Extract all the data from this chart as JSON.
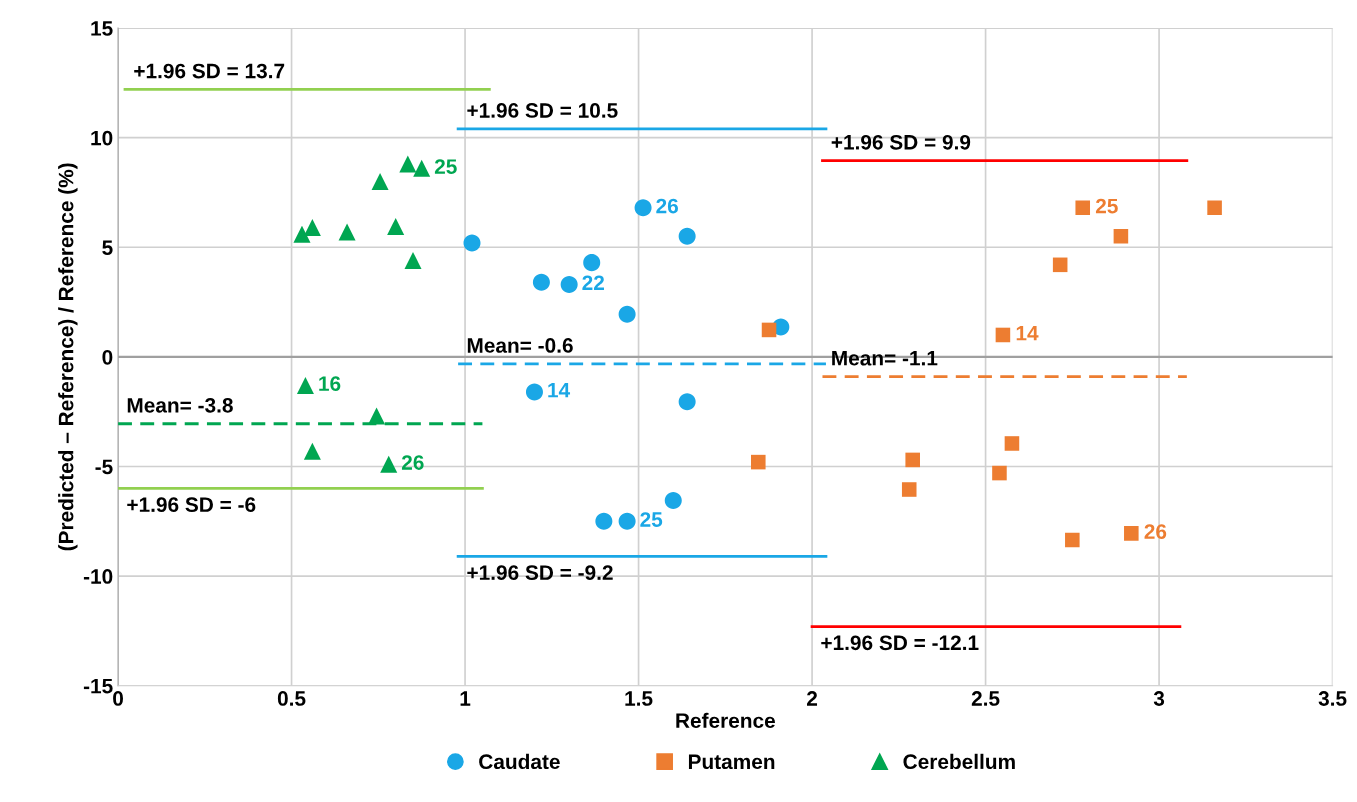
{
  "chart_data": {
    "type": "scatter",
    "xlabel": "Reference",
    "ylabel": "(Predicted – Reference) / Reference (%)",
    "xlim": [
      0,
      3.5
    ],
    "xticks": [
      0,
      0.5,
      1,
      1.5,
      2,
      2.5,
      3,
      3.5
    ],
    "ylim": [
      -15,
      15
    ],
    "yticks": [
      -15,
      -10,
      -5,
      0,
      5,
      10,
      15
    ],
    "grid": true,
    "legend": "bottom",
    "series": [
      {
        "name": "Caudate",
        "marker": "circle",
        "color": "#1aa7e6",
        "x": [
          1.02,
          1.22,
          1.3,
          1.365,
          1.467,
          1.513,
          1.64,
          1.2,
          1.64,
          1.4,
          1.467,
          1.6,
          1.91
        ],
        "values": [
          5.2,
          3.4,
          3.3,
          4.3,
          1.95,
          6.8,
          5.5,
          -1.6,
          -2.05,
          -7.5,
          -7.5,
          -6.55,
          1.36
        ]
      },
      {
        "name": "Putamen",
        "marker": "square",
        "color": "#ed7d31",
        "x": [
          1.876,
          1.845,
          2.29,
          2.28,
          2.576,
          2.54,
          2.55,
          2.715,
          2.78,
          2.89,
          3.16,
          2.75,
          2.92
        ],
        "values": [
          1.23,
          -4.8,
          -4.7,
          -6.05,
          -3.95,
          -5.3,
          1.0,
          4.2,
          6.8,
          5.5,
          6.8,
          -8.35,
          -8.05
        ]
      },
      {
        "name": "Cerebellum",
        "marker": "triangle",
        "color": "#00a651",
        "x": [
          0.53,
          0.56,
          0.66,
          0.8,
          0.755,
          0.835,
          0.875,
          0.85,
          0.54,
          0.745,
          0.56,
          0.78
        ],
        "values": [
          5.6,
          5.9,
          5.7,
          5.95,
          8.0,
          8.8,
          8.6,
          4.4,
          -1.3,
          -2.7,
          -4.3,
          -4.9
        ]
      },
      {
        "name": "+1.96 SD = 13.7",
        "type": "line",
        "line_style": "solid",
        "color": "#92d050",
        "x": [
          0.02,
          1.07
        ],
        "values": [
          12.2,
          12.2
        ]
      },
      {
        "name": "Mean= -3.8",
        "type": "line",
        "line_style": "dashed",
        "color": "#00a651",
        "x": [
          0.0,
          1.05
        ],
        "values": [
          -3.05,
          -3.05
        ]
      },
      {
        "name": "+1.96 SD = -6",
        "type": "line",
        "line_style": "solid",
        "color": "#92d050",
        "x": [
          0.0,
          1.05
        ],
        "values": [
          -6.0,
          -6.0
        ]
      },
      {
        "name": "+1.96 SD = 10.5",
        "type": "line",
        "line_style": "solid",
        "color": "#1aa7e6",
        "x": [
          0.98,
          2.04
        ],
        "values": [
          10.4,
          10.4
        ]
      },
      {
        "name": "Mean= -0.6",
        "type": "line",
        "line_style": "dashed",
        "color": "#1aa7e6",
        "x": [
          0.98,
          2.04
        ],
        "values": [
          -0.32,
          -0.32
        ]
      },
      {
        "name": "+1.96 SD = -9.2",
        "type": "line",
        "line_style": "solid",
        "color": "#1aa7e6",
        "x": [
          0.98,
          2.04
        ],
        "values": [
          -9.1,
          -9.1
        ]
      },
      {
        "name": "+1.96 SD = 9.9",
        "type": "line",
        "line_style": "solid",
        "color": "#ff0000",
        "x": [
          2.03,
          3.08
        ],
        "values": [
          8.95,
          8.95
        ]
      },
      {
        "name": "Mean= -1.1",
        "type": "line",
        "line_style": "dashed",
        "color": "#ed7d31",
        "x": [
          2.03,
          3.08
        ],
        "values": [
          -0.9,
          -0.9
        ]
      },
      {
        "name": "+1.96 SD = -12.1",
        "type": "line",
        "line_style": "solid",
        "color": "#ff0000",
        "x": [
          2.0,
          3.06
        ],
        "values": [
          -12.3,
          -12.3
        ]
      }
    ],
    "annotations": [
      {
        "text": "22",
        "x": 1.3,
        "y": 3.3
      },
      {
        "text": "26",
        "x": 1.513,
        "y": 6.8
      },
      {
        "text": "14",
        "x": 1.2,
        "y": -1.6
      },
      {
        "text": "25",
        "x": 1.467,
        "y": -7.5
      },
      {
        "text": "14",
        "x": 2.55,
        "y": 1.0
      },
      {
        "text": "25",
        "x": 2.78,
        "y": 6.8
      },
      {
        "text": "26",
        "x": 2.92,
        "y": -8.05
      },
      {
        "text": "25",
        "x": 0.875,
        "y": 8.6
      },
      {
        "text": "16",
        "x": 0.54,
        "y": -1.3
      },
      {
        "text": "26",
        "x": 0.78,
        "y": -4.9
      }
    ]
  }
}
